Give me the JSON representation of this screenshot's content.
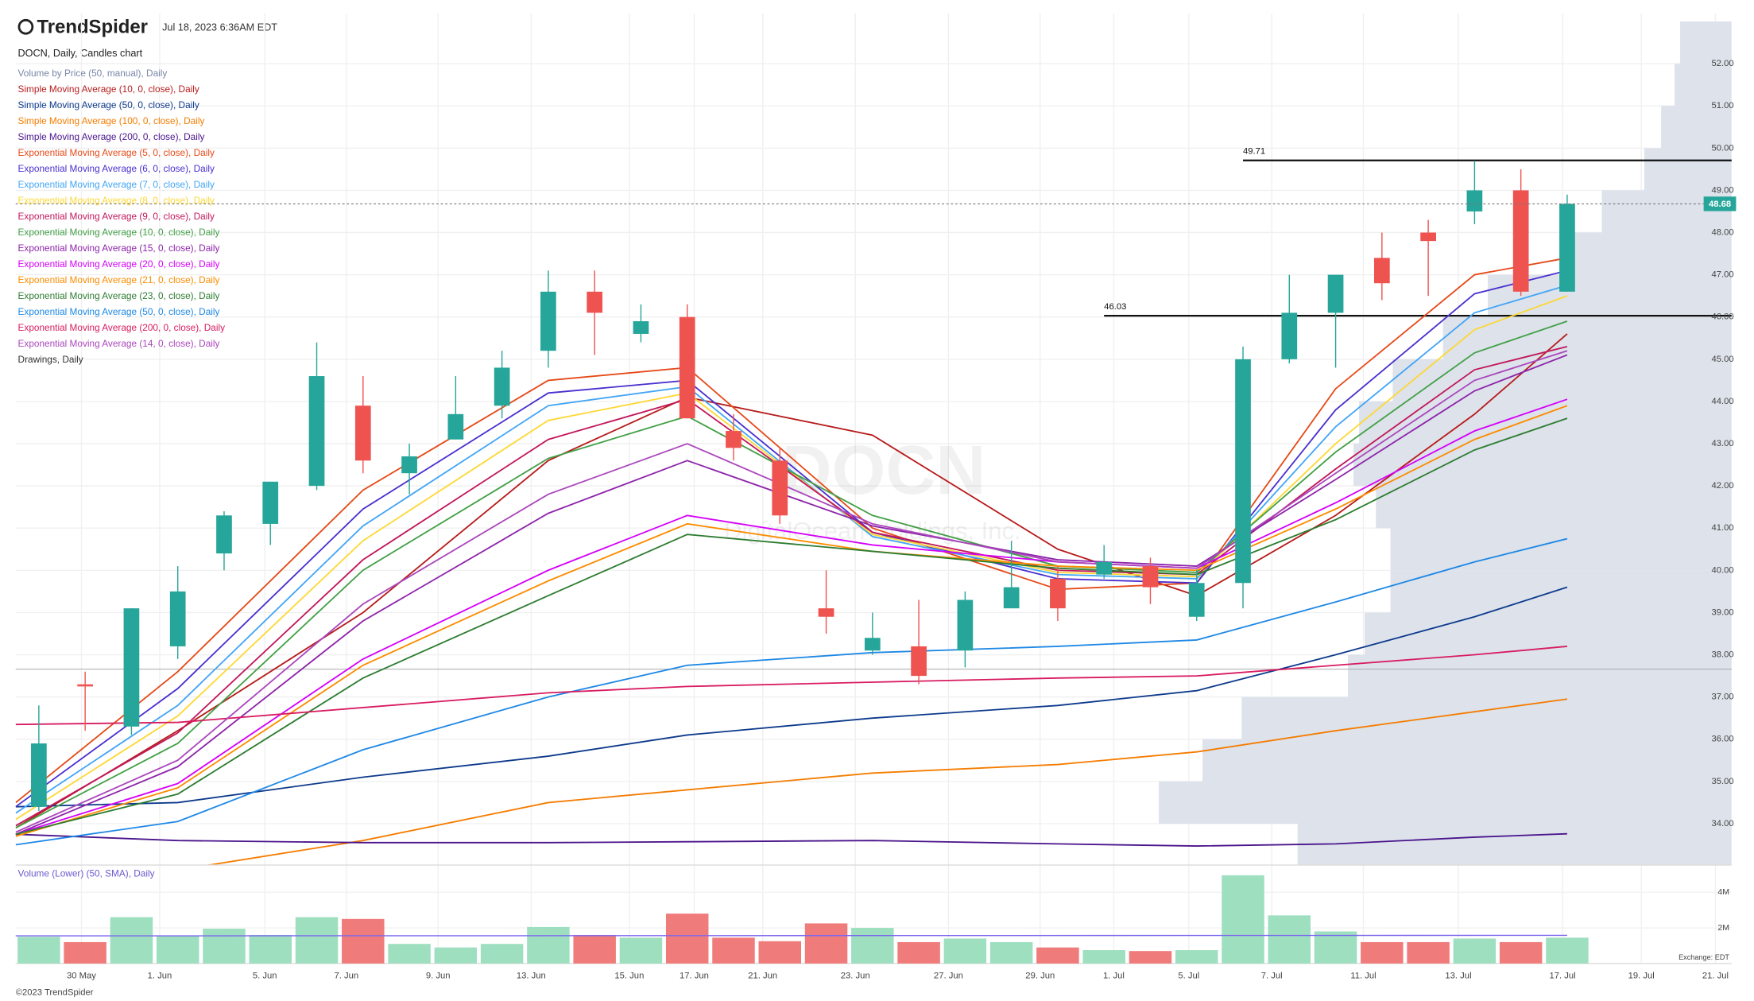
{
  "header": {
    "logo": "TrendSpider",
    "timestamp": "Jul 18, 2023 6:36AM EDT",
    "footer": "©2023 TrendSpider"
  },
  "chart_data": [
    {
      "type": "candlestick",
      "title": "DOCN, Daily, Candles chart",
      "watermark": "DOCN",
      "watermark_sub": "DigitalOcean Holdings, Inc.",
      "xlim": [
        -0.5,
        36.55
      ],
      "ylim": [
        33.02,
        53.19
      ],
      "yticks": [
        {
          "value": 34,
          "label": "34.00"
        },
        {
          "value": 35,
          "label": "35.00"
        },
        {
          "value": 36,
          "label": "36.00"
        },
        {
          "value": 37,
          "label": "37.00"
        },
        {
          "value": 38,
          "label": "38.00"
        },
        {
          "value": 39,
          "label": "39.00"
        },
        {
          "value": 40,
          "label": "40.00"
        },
        {
          "value": 41,
          "label": "41.00"
        },
        {
          "value": 42,
          "label": "42.00"
        },
        {
          "value": 43,
          "label": "43.00"
        },
        {
          "value": 44,
          "label": "44.00"
        },
        {
          "value": 45,
          "label": "45.00"
        },
        {
          "value": 46,
          "label": "46.00"
        },
        {
          "value": 47,
          "label": "47.00"
        },
        {
          "value": 48,
          "label": "48.00"
        },
        {
          "value": 49,
          "label": "49.00"
        },
        {
          "value": 50,
          "label": "50.00"
        },
        {
          "value": 51,
          "label": "51.00"
        },
        {
          "value": 52,
          "label": "52.00"
        }
      ],
      "xticks": [
        {
          "value": 0.92,
          "label": "30 May"
        },
        {
          "value": 2.61,
          "label": "1. Jun"
        },
        {
          "value": 4.88,
          "label": "5. Jun"
        },
        {
          "value": 6.64,
          "label": "7. Jun"
        },
        {
          "value": 8.62,
          "label": "9. Jun"
        },
        {
          "value": 10.63,
          "label": "13. Jun"
        },
        {
          "value": 12.75,
          "label": "15. Jun"
        },
        {
          "value": 14.15,
          "label": "17. Jun"
        },
        {
          "value": 15.63,
          "label": "21. Jun"
        },
        {
          "value": 17.63,
          "label": "23. Jun"
        },
        {
          "value": 19.64,
          "label": "27. Jun"
        },
        {
          "value": 21.62,
          "label": "29. Jun"
        },
        {
          "value": 23.21,
          "label": "1. Jul"
        },
        {
          "value": 24.83,
          "label": "5. Jul"
        },
        {
          "value": 26.62,
          "label": "7. Jul"
        },
        {
          "value": 28.6,
          "label": "11. Jul"
        },
        {
          "value": 30.65,
          "label": "13. Jul"
        },
        {
          "value": 32.9,
          "label": "17. Jul"
        },
        {
          "value": 34.6,
          "label": "19. Jul"
        },
        {
          "value": 36.2,
          "label": "21. Jul"
        }
      ],
      "grid": true,
      "up_color": "#26a69a",
      "down_color": "#ef5350",
      "open": [
        34.4,
        37.3,
        36.3,
        38.2,
        40.4,
        41.1,
        42.0,
        43.9,
        42.3,
        43.1,
        43.9,
        45.2,
        46.6,
        45.6,
        46.0,
        43.3,
        42.6,
        39.1,
        38.1,
        38.2,
        38.1,
        39.1,
        39.8,
        39.9,
        40.1,
        38.9,
        39.7,
        45.0,
        46.1,
        47.4,
        48.0,
        48.5,
        49.0,
        46.6
      ],
      "high": [
        36.8,
        37.6,
        39.1,
        40.1,
        41.4,
        42.1,
        45.4,
        44.6,
        43.0,
        44.6,
        45.2,
        47.1,
        47.1,
        46.3,
        46.3,
        43.7,
        42.9,
        40.0,
        39.0,
        39.3,
        39.5,
        40.7,
        40.1,
        40.6,
        40.3,
        40.0,
        45.3,
        47.0,
        47.0,
        48.0,
        48.3,
        49.7,
        49.5,
        48.9
      ],
      "low": [
        34.3,
        36.2,
        36.1,
        37.9,
        40.0,
        40.6,
        41.9,
        42.3,
        41.8,
        43.1,
        43.6,
        44.8,
        45.1,
        45.4,
        43.6,
        42.6,
        41.1,
        38.5,
        38.0,
        37.3,
        37.7,
        39.1,
        38.8,
        39.8,
        39.2,
        38.8,
        39.1,
        44.9,
        44.8,
        46.4,
        46.5,
        48.2,
        46.5,
        46.6
      ],
      "close": [
        35.9,
        37.25,
        39.1,
        39.5,
        41.3,
        42.1,
        44.6,
        42.6,
        42.7,
        43.7,
        44.8,
        46.6,
        46.1,
        45.9,
        43.6,
        42.9,
        41.3,
        38.9,
        38.4,
        37.5,
        39.3,
        39.6,
        39.1,
        40.2,
        39.6,
        39.7,
        45.0,
        46.1,
        47.0,
        46.8,
        47.8,
        49.0,
        46.6,
        48.68
      ],
      "volume_profile": {
        "name": "Volume by Price (50, manual), Daily",
        "color": "#7986a8",
        "fill": "#dde2eb",
        "bins": [
          33,
          34,
          35,
          36,
          37,
          38,
          39,
          40,
          41,
          42,
          43,
          44,
          45,
          46,
          47,
          48,
          49,
          50,
          51,
          52,
          53
        ],
        "values": [
          388,
          512,
          473,
          438,
          343,
          328,
          305,
          305,
          318,
          338,
          333,
          303,
          258,
          218,
          152,
          116,
          78,
          63,
          51,
          46
        ]
      },
      "overlays": {
        "x": [
          -0.5,
          3,
          7,
          11,
          14,
          18,
          22,
          25,
          28,
          31,
          33
        ],
        "series": [
          {
            "name": "Simple Moving Average (10, 0, close), Daily",
            "color": "#b71c1c",
            "values": [
              33.9,
              36.2,
              39.0,
              42.6,
              44.1,
              43.2,
              40.5,
              39.4,
              41.3,
              43.7,
              45.6
            ]
          },
          {
            "name": "Simple Moving Average (50, 0, close), Daily",
            "color": "#0d3a8c",
            "values": [
              34.4,
              34.5,
              35.1,
              35.6,
              36.1,
              36.5,
              36.8,
              37.15,
              38.0,
              38.9,
              39.6
            ]
          },
          {
            "name": "Simple Moving Average (100, 0, close), Daily",
            "color": "#f57c00",
            "values": [
              32.3,
              32.9,
              33.6,
              34.5,
              34.8,
              35.2,
              35.4,
              35.7,
              36.2,
              36.65,
              36.95
            ]
          },
          {
            "name": "Simple Moving Average (200, 0, close), Daily",
            "color": "#4a148c",
            "values": [
              33.75,
              33.6,
              33.55,
              33.55,
              33.57,
              33.6,
              33.52,
              33.47,
              33.52,
              33.68,
              33.76
            ]
          },
          {
            "name": "Exponential Moving Average (5, 0, close), Daily",
            "color": "#e64a19",
            "values": [
              34.5,
              37.6,
              41.9,
              44.5,
              44.8,
              41.0,
              39.55,
              39.7,
              44.3,
              47.0,
              47.4
            ]
          },
          {
            "name": "Exponential Moving Average (6, 0, close), Daily",
            "color": "#4a2fd0",
            "values": [
              34.4,
              37.2,
              41.45,
              44.2,
              44.5,
              40.9,
              39.8,
              39.7,
              43.8,
              46.55,
              47.1
            ]
          },
          {
            "name": "Exponential Moving Average (7, 0, close), Daily",
            "color": "#42a5f5",
            "values": [
              34.25,
              36.8,
              41.05,
              43.9,
              44.35,
              40.8,
              39.9,
              39.8,
              43.4,
              46.1,
              46.75
            ]
          },
          {
            "name": "Exponential Moving Average (8, 0, close), Daily",
            "color": "#fdd835",
            "values": [
              34.1,
              36.55,
              40.7,
              43.55,
              44.2,
              40.85,
              39.95,
              39.85,
              43.0,
              45.7,
              46.5
            ]
          },
          {
            "name": "Exponential Moving Average (9, 0, close), Daily",
            "color": "#c2185b",
            "values": [
              33.95,
              36.15,
              40.25,
              43.1,
              44.05,
              40.9,
              40.0,
              39.9,
              42.4,
              44.75,
              45.3
            ]
          },
          {
            "name": "Exponential Moving Average (10, 0, close), Daily",
            "color": "#43a047",
            "values": [
              33.9,
              35.9,
              40.0,
              42.65,
              43.65,
              41.3,
              40.1,
              39.95,
              42.8,
              45.15,
              45.9
            ]
          },
          {
            "name": "Exponential Moving Average (15, 0, close), Daily",
            "color": "#8e24aa",
            "values": [
              33.75,
              35.35,
              38.8,
              41.35,
              42.6,
              41.05,
              40.25,
              40.1,
              42.15,
              44.25,
              45.1
            ]
          },
          {
            "name": "Exponential Moving Average (20, 0, close), Daily",
            "color": "#d500f9",
            "values": [
              33.75,
              34.95,
              37.9,
              40.0,
              41.3,
              40.6,
              40.2,
              40.05,
              41.6,
              43.3,
              44.05
            ]
          },
          {
            "name": "Exponential Moving Average (21, 0, close), Daily",
            "color": "#fb8c00",
            "values": [
              33.7,
              34.85,
              37.75,
              39.75,
              41.1,
              40.45,
              40.1,
              40.0,
              41.45,
              43.1,
              43.9
            ]
          },
          {
            "name": "Exponential Moving Average (23, 0, close), Daily",
            "color": "#2e7d32",
            "values": [
              33.75,
              34.7,
              37.45,
              39.4,
              40.85,
              40.45,
              40.05,
              39.9,
              41.2,
              42.85,
              43.6
            ]
          },
          {
            "name": "Exponential Moving Average (50, 0, close), Daily",
            "color": "#1e88e5",
            "values": [
              33.5,
              34.05,
              35.75,
              37.0,
              37.75,
              38.05,
              38.2,
              38.35,
              39.25,
              40.2,
              40.75
            ]
          },
          {
            "name": "Exponential Moving Average (200, 0, close), Daily",
            "color": "#d81b60",
            "values": [
              36.35,
              36.4,
              36.75,
              37.1,
              37.25,
              37.35,
              37.45,
              37.5,
              37.75,
              38.0,
              38.2
            ]
          },
          {
            "name": "Exponential Moving Average (14, 0, close), Daily",
            "color": "#ab47bc",
            "values": [
              33.8,
              35.5,
              39.2,
              41.8,
              43.0,
              41.1,
              40.2,
              40.05,
              42.3,
              44.5,
              45.2
            ]
          }
        ]
      },
      "levels": [
        {
          "value": 49.71,
          "x_start": 26
        },
        {
          "value": 46.03,
          "x_start": 23
        }
      ],
      "reference_level": 37.66,
      "last_price": 48.68,
      "drawings_label": "Drawings, Daily"
    },
    {
      "type": "bar",
      "title": "Volume (Lower) (50, SMA), Daily",
      "ylim": [
        0,
        5.4
      ],
      "yticks": [
        {
          "value": 2,
          "label": "2M"
        },
        {
          "value": 4,
          "label": "4M"
        }
      ],
      "values": [
        1.5,
        1.2,
        2.6,
        1.55,
        1.95,
        1.6,
        2.6,
        2.5,
        1.1,
        0.9,
        1.1,
        2.05,
        1.6,
        1.45,
        2.8,
        1.45,
        1.25,
        2.25,
        2.0,
        1.2,
        1.4,
        1.2,
        0.9,
        0.75,
        0.7,
        0.75,
        4.95,
        2.7,
        1.8,
        1.2,
        1.2,
        1.4,
        1.2,
        1.45
      ],
      "up_color": "#9edfc0",
      "down_color": "#f07b7b",
      "sma": {
        "x": [
          -0.5,
          33
        ],
        "values": [
          1.55,
          1.58
        ],
        "color": "#7b68ee"
      },
      "note": "Exchange: EDT"
    }
  ]
}
